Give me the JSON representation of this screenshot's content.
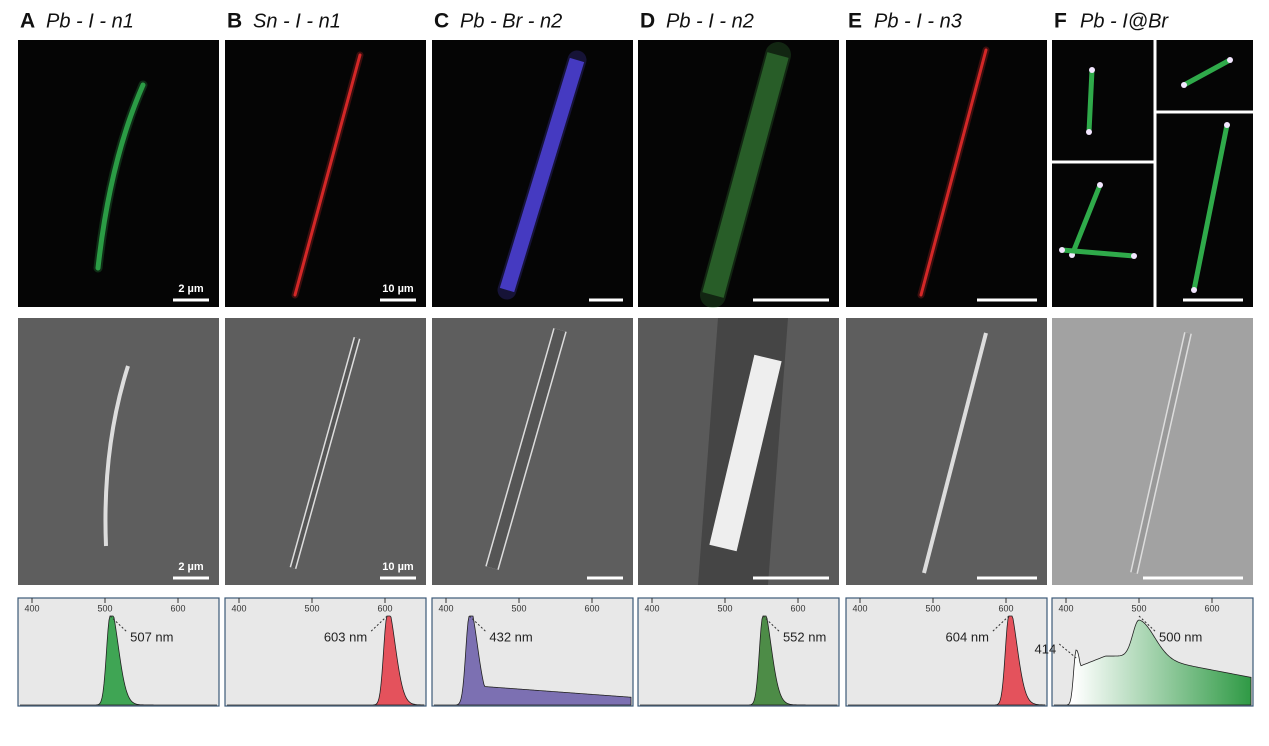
{
  "panels": [
    {
      "letter": "A",
      "title": "Pb - I - n1",
      "fluorescence_scale": "2 µm",
      "sem_scale": "2 µm",
      "ticks": [
        400,
        500,
        600
      ],
      "peaks": [
        {
          "value": 507,
          "label": "507 nm"
        }
      ]
    },
    {
      "letter": "B",
      "title": "Sn - I - n1",
      "fluorescence_scale": "10 µm",
      "sem_scale": "10 µm",
      "ticks": [
        400,
        500,
        600
      ],
      "peaks": [
        {
          "value": 603,
          "label": "603 nm"
        }
      ]
    },
    {
      "letter": "C",
      "title": "Pb - Br - n2",
      "ticks": [
        400,
        500,
        600
      ],
      "peaks": [
        {
          "value": 432,
          "label": "432 nm"
        }
      ]
    },
    {
      "letter": "D",
      "title": "Pb - I - n2",
      "ticks": [
        400,
        500,
        600
      ],
      "peaks": [
        {
          "value": 552,
          "label": "552 nm"
        }
      ]
    },
    {
      "letter": "E",
      "title": "Pb - I - n3",
      "ticks": [
        400,
        500,
        600
      ],
      "peaks": [
        {
          "value": 604,
          "label": "604 nm"
        }
      ]
    },
    {
      "letter": "F",
      "title": "Pb - I@Br",
      "ticks": [
        400,
        500,
        600
      ],
      "peaks": [
        {
          "value": 414,
          "label": "414"
        },
        {
          "value": 500,
          "label": "500 nm"
        }
      ]
    }
  ]
}
